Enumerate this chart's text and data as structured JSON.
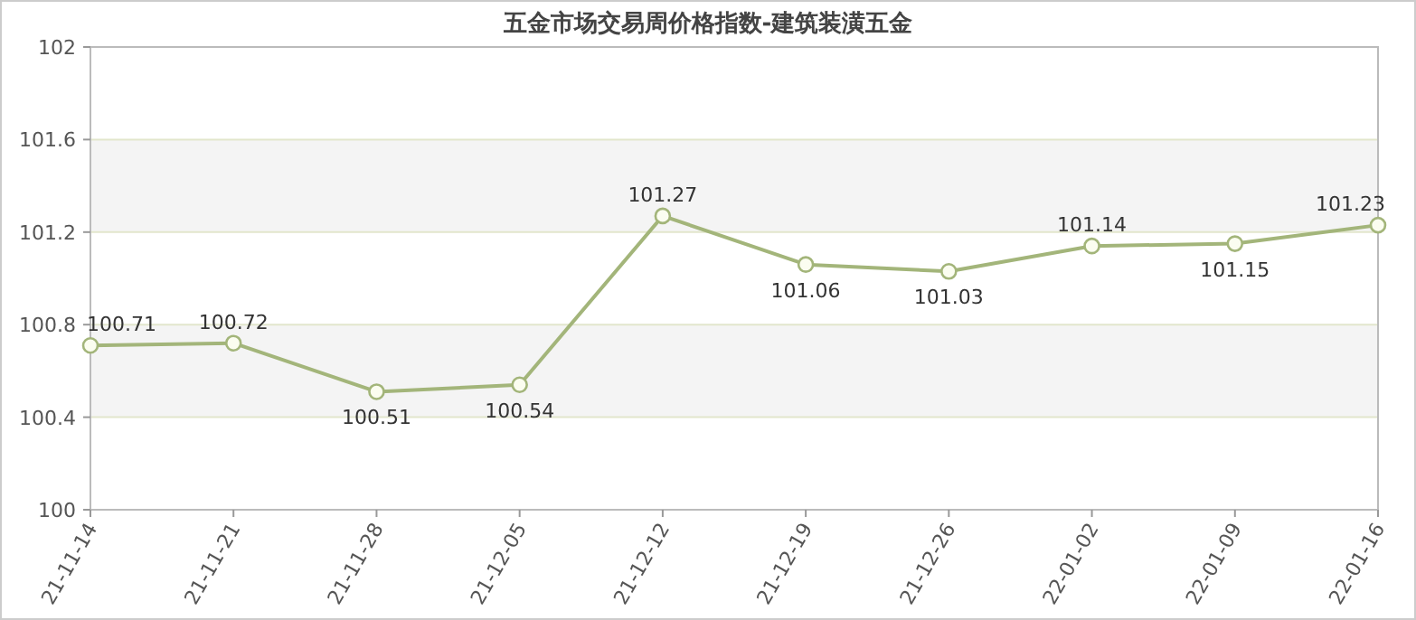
{
  "chart_data": {
    "type": "line",
    "title": "五金市场交易周价格指数-建筑装潢五金",
    "categories": [
      "21-11-14",
      "21-11-21",
      "21-11-28",
      "21-12-05",
      "21-12-12",
      "21-12-19",
      "21-12-26",
      "22-01-02",
      "22-01-09",
      "22-01-16"
    ],
    "series": [
      {
        "color": "#a3b57a",
        "values": [
          100.71,
          100.72,
          100.51,
          100.54,
          101.27,
          101.06,
          101.03,
          101.14,
          101.15,
          101.23
        ]
      }
    ],
    "ylim": [
      100,
      102
    ],
    "yticks": [
      100,
      100.4,
      100.8,
      101.2,
      101.6,
      102
    ],
    "grid": "y",
    "marker": "circle",
    "data_labels": true
  }
}
